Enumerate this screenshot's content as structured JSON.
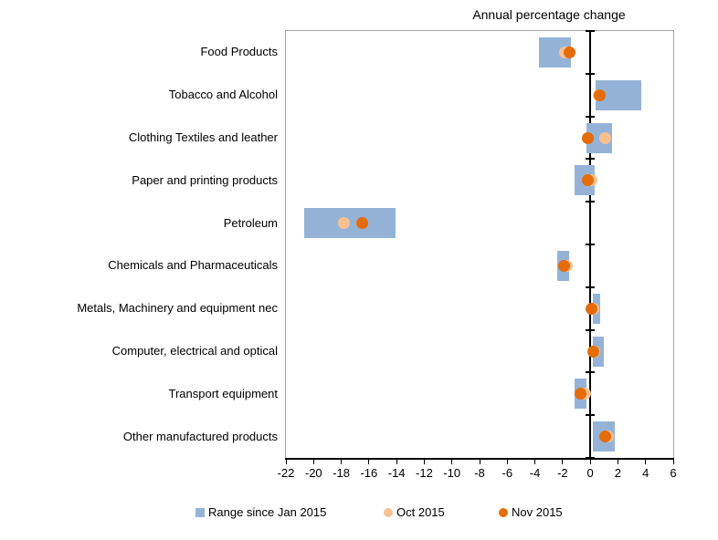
{
  "chart_data": {
    "type": "bar",
    "subtype": "horizontal-range-with-points",
    "title": "Annual percentage change",
    "xlabel": "",
    "ylabel": "",
    "xlim": [
      -22,
      6
    ],
    "x_ticks": [
      -22,
      -20,
      -18,
      -16,
      -14,
      -12,
      -10,
      -8,
      -6,
      -4,
      -2,
      0,
      2,
      4,
      6
    ],
    "grid": false,
    "legend_position": "bottom",
    "categories": [
      "Food Products",
      "Tobacco and Alcohol",
      "Clothing Textiles and leather",
      "Paper and printing products",
      "Petroleum",
      "Chemicals and Pharmaceuticals",
      "Metals, Machinery and equipment nec",
      "Computer, electrical and optical",
      "Transport equipment",
      "Other manufactured products"
    ],
    "series": [
      {
        "name": "Range since Jan 2015",
        "type": "range",
        "color": "#95B3D7",
        "values": [
          [
            -3.7,
            -1.4
          ],
          [
            0.4,
            3.7
          ],
          [
            -0.3,
            1.6
          ],
          [
            -1.1,
            0.3
          ],
          [
            -20.7,
            -14.1
          ],
          [
            -2.4,
            -1.5
          ],
          [
            0.2,
            0.7
          ],
          [
            0.2,
            1.0
          ],
          [
            -1.1,
            -0.3
          ],
          [
            0.2,
            1.8
          ]
        ]
      },
      {
        "name": "Oct 2015",
        "type": "point",
        "color": "#FAC090",
        "values": [
          -1.8,
          0.6,
          1.1,
          0.1,
          -17.8,
          -1.7,
          0.2,
          0.3,
          -0.4,
          1.3
        ]
      },
      {
        "name": "Nov 2015",
        "type": "point",
        "color": "#E46C0A",
        "values": [
          -1.5,
          0.7,
          -0.2,
          -0.2,
          -16.5,
          -1.9,
          0.1,
          0.2,
          -0.7,
          1.1
        ]
      }
    ],
    "colors": {
      "range_bar": "#95B3D7",
      "oct_point": "#FAC090",
      "nov_point": "#E46C0A",
      "plot_border": "#a6a6a6",
      "axis": "#000000"
    }
  }
}
